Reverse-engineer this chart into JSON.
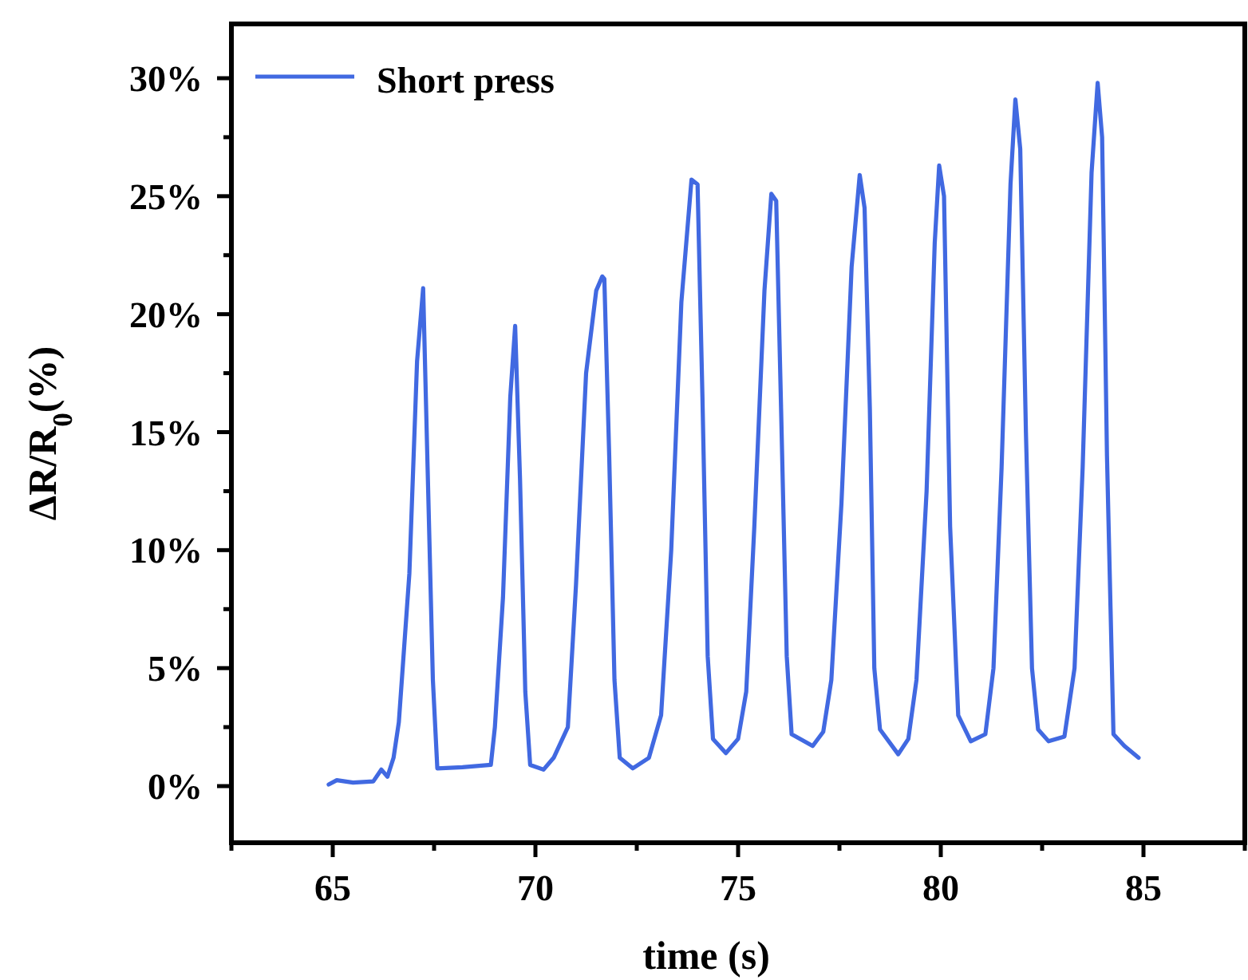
{
  "chart_data": {
    "type": "line",
    "xlabel": "time (s)",
    "ylabel": "ΔR/R$_{0}$(%)",
    "xlim": [
      62.5,
      87.5
    ],
    "ylim": [
      -2.4,
      32.3
    ],
    "xticks": [
      {
        "value": 62.5,
        "label": null
      },
      65,
      {
        "value": 67.5,
        "label": null
      },
      70,
      {
        "value": 72.5,
        "label": null
      },
      75,
      {
        "value": 77.5,
        "label": null
      },
      80,
      {
        "value": 82.5,
        "label": null
      },
      85,
      {
        "value": 87.5,
        "label": null
      }
    ],
    "yticks": [
      {
        "value": 0,
        "label": "0%"
      },
      {
        "value": 2.5,
        "label": null
      },
      {
        "value": 5,
        "label": "5%"
      },
      {
        "value": 7.5,
        "label": null
      },
      {
        "value": 10,
        "label": "10%"
      },
      {
        "value": 12.5,
        "label": null
      },
      {
        "value": 15,
        "label": "15%"
      },
      {
        "value": 17.5,
        "label": null
      },
      {
        "value": 20,
        "label": "20%"
      },
      {
        "value": 22.5,
        "label": null
      },
      {
        "value": 25,
        "label": "25%"
      },
      {
        "value": 27.5,
        "label": null
      },
      {
        "value": 30,
        "label": "30%"
      }
    ],
    "grid": false,
    "legend": "top left",
    "marker": "none",
    "line_style": "solid",
    "series": [
      {
        "name": "Short press",
        "color": "#4169e1",
        "x": [
          64.9,
          65.1,
          65.5,
          66.0,
          66.2,
          66.35,
          66.5,
          66.63,
          66.89,
          67.08,
          67.23,
          67.34,
          67.47,
          67.58,
          68.2,
          68.9,
          69.0,
          69.2,
          69.38,
          69.5,
          69.62,
          69.75,
          69.87,
          70.2,
          70.45,
          70.8,
          71.0,
          71.25,
          71.5,
          71.65,
          71.7,
          71.82,
          71.95,
          72.08,
          72.4,
          72.8,
          73.1,
          73.35,
          73.6,
          73.85,
          74.0,
          74.12,
          74.25,
          74.38,
          74.7,
          75.0,
          75.2,
          75.4,
          75.65,
          75.82,
          75.94,
          76.06,
          76.2,
          76.32,
          76.84,
          77.1,
          77.3,
          77.55,
          77.8,
          78.0,
          78.12,
          78.25,
          78.36,
          78.5,
          78.95,
          79.2,
          79.4,
          79.65,
          79.85,
          79.96,
          80.08,
          80.23,
          80.43,
          80.74,
          81.1,
          81.3,
          81.5,
          81.72,
          81.84,
          81.96,
          82.1,
          82.25,
          82.4,
          82.66,
          83.05,
          83.3,
          83.5,
          83.72,
          83.87,
          83.98,
          84.1,
          84.26,
          84.53,
          84.88
        ],
        "values": [
          0.07,
          0.25,
          0.15,
          0.2,
          0.7,
          0.4,
          1.2,
          2.7,
          9.0,
          18.0,
          21.1,
          13.5,
          4.5,
          0.75,
          0.8,
          0.9,
          2.5,
          8.0,
          16.5,
          19.5,
          13.0,
          4.0,
          0.9,
          0.7,
          1.2,
          2.5,
          8.5,
          17.5,
          21.0,
          21.6,
          21.5,
          14.0,
          4.5,
          1.2,
          0.75,
          1.2,
          3.0,
          10.0,
          20.5,
          25.7,
          25.5,
          16.5,
          5.5,
          2.0,
          1.4,
          2.0,
          4.0,
          11.0,
          21.0,
          25.1,
          24.8,
          16.0,
          5.5,
          2.2,
          1.7,
          2.3,
          4.5,
          12.0,
          22.0,
          25.9,
          24.5,
          16.0,
          5.0,
          2.4,
          1.35,
          2.0,
          4.5,
          12.5,
          23.0,
          26.3,
          25.0,
          11.0,
          3.0,
          1.9,
          2.2,
          5.0,
          13.5,
          25.5,
          29.1,
          27.0,
          15.0,
          5.0,
          2.4,
          1.9,
          2.1,
          5.0,
          13.5,
          26.0,
          29.8,
          27.5,
          14.0,
          2.2,
          1.7,
          1.2
        ]
      }
    ]
  }
}
